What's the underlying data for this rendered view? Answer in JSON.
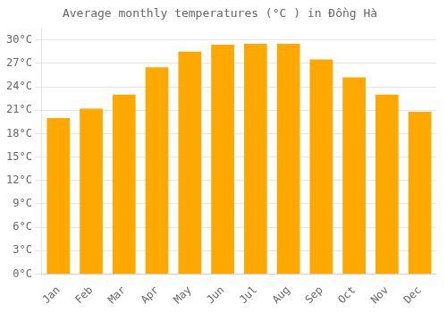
{
  "chart_data": {
    "type": "bar",
    "title": "Average monthly temperatures (°C ) in Đồng Hà",
    "categories": [
      "Jan",
      "Feb",
      "Mar",
      "Apr",
      "May",
      "Jun",
      "Jul",
      "Aug",
      "Sep",
      "Oct",
      "Nov",
      "Dec"
    ],
    "values": [
      20.0,
      21.2,
      23.0,
      26.5,
      28.5,
      29.4,
      29.5,
      29.5,
      27.5,
      25.2,
      23.0,
      20.8
    ],
    "color": "#FFA800",
    "ylim": [
      0,
      31.5
    ],
    "yticks": [
      {
        "value": 0,
        "label": "0°C"
      },
      {
        "value": 3,
        "label": "3°C"
      },
      {
        "value": 6,
        "label": "6°C"
      },
      {
        "value": 9,
        "label": "9°C"
      },
      {
        "value": 12,
        "label": "12°C"
      },
      {
        "value": 15,
        "label": "15°C"
      },
      {
        "value": 18,
        "label": "18°C"
      },
      {
        "value": 21,
        "label": "21°C"
      },
      {
        "value": 24,
        "label": "24°C"
      },
      {
        "value": 27,
        "label": "27°C"
      },
      {
        "value": 30,
        "label": "30°C"
      }
    ],
    "grid": true
  }
}
